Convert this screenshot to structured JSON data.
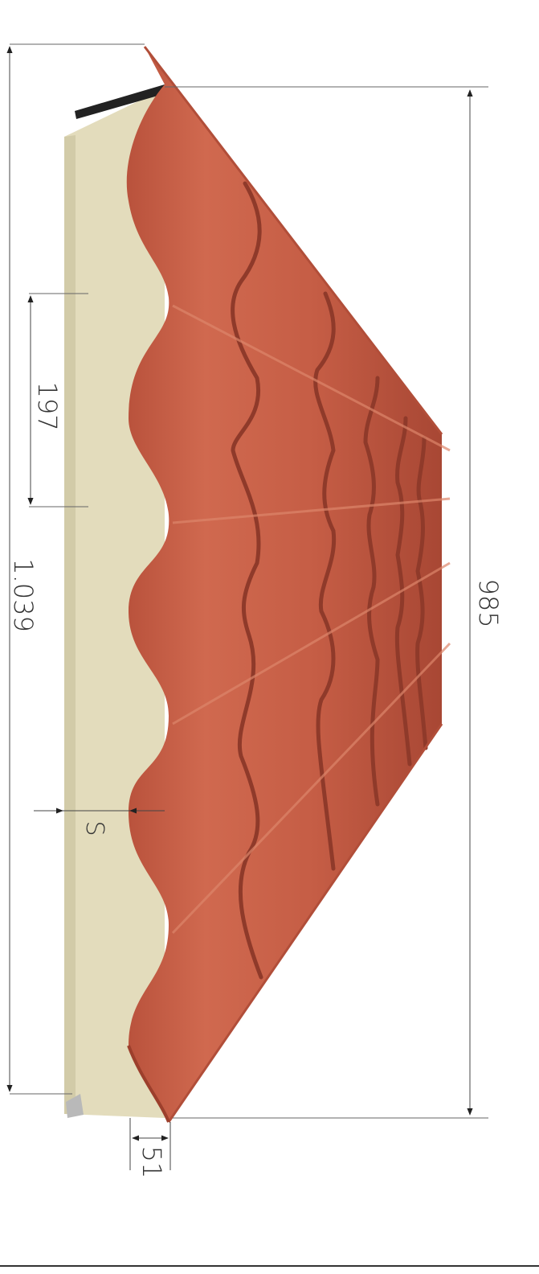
{
  "dimensions": {
    "total_width": "1.039",
    "cover_width": "985",
    "tile_pitch": "197",
    "thickness_label": "S",
    "overlap": "51"
  },
  "colors": {
    "tile": "#c9604a",
    "tile_dark": "#9c3f2c",
    "tile_light": "#d77a60",
    "foam": "#e3dcbc",
    "seal": "#222222",
    "line": "#555555"
  }
}
